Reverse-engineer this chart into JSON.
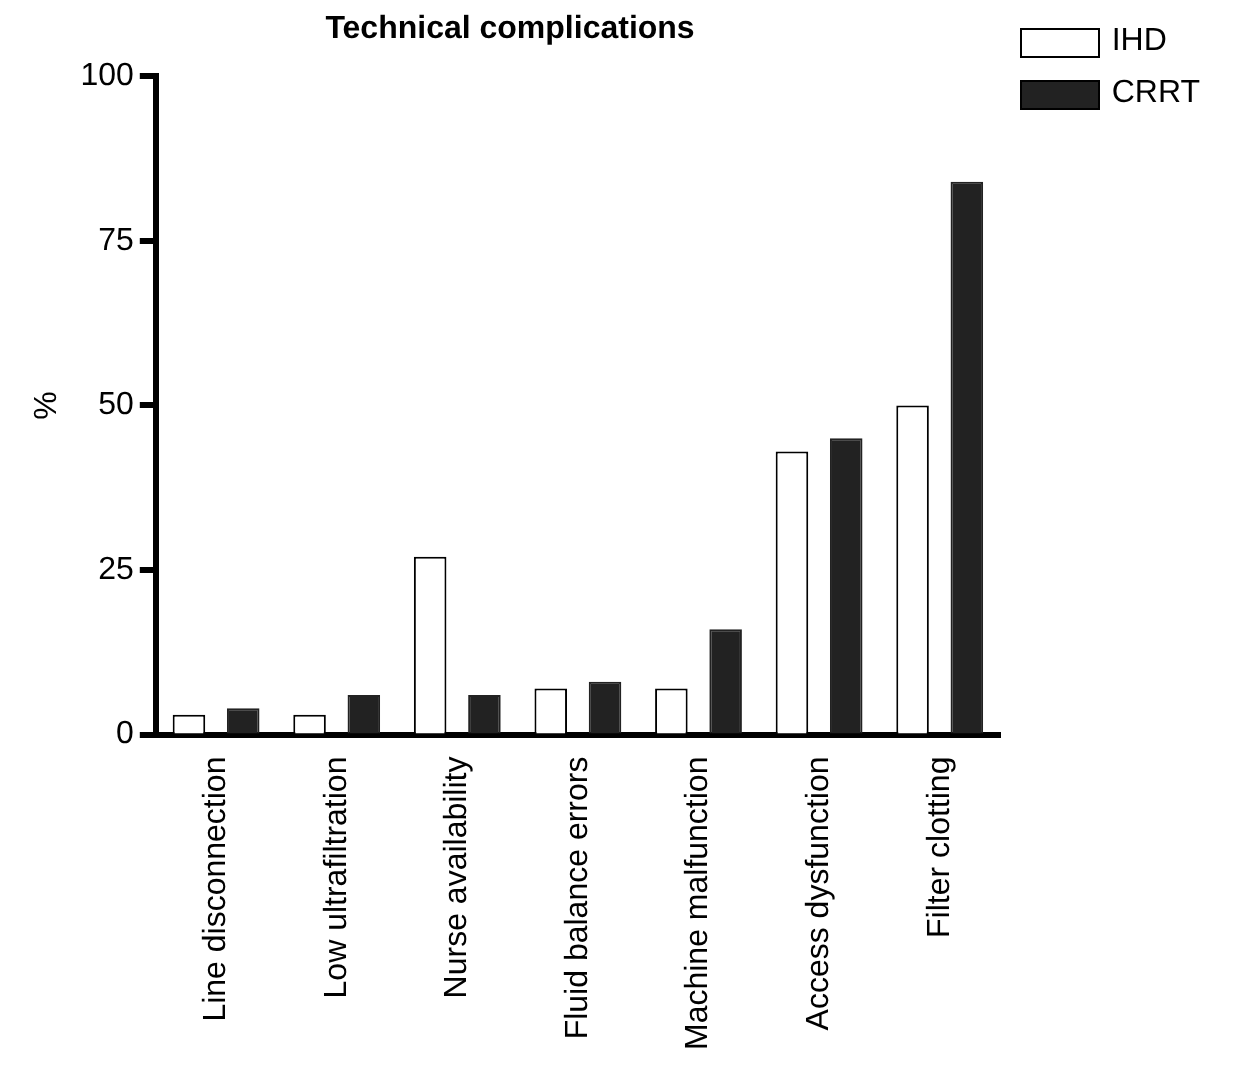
{
  "chart_data": {
    "type": "bar",
    "title": "Technical complications",
    "ylabel": "%",
    "categories": [
      "Line disconnection",
      "Low ultrafiltration",
      "Nurse availability",
      "Fluid balance errors",
      "Machine malfunction",
      "Access dysfunction",
      "Filter clotting"
    ],
    "series": [
      {
        "name": "IHD",
        "color": "#ffffff",
        "values": [
          3,
          3,
          27,
          7,
          7,
          43,
          50
        ]
      },
      {
        "name": "CRRT",
        "color": "#222222",
        "values": [
          4,
          6,
          6,
          8,
          16,
          45,
          84
        ]
      }
    ],
    "ylim": [
      0,
      100
    ],
    "yticks": [
      0,
      25,
      50,
      75,
      100
    ],
    "grid": false,
    "legend": "top right"
  }
}
